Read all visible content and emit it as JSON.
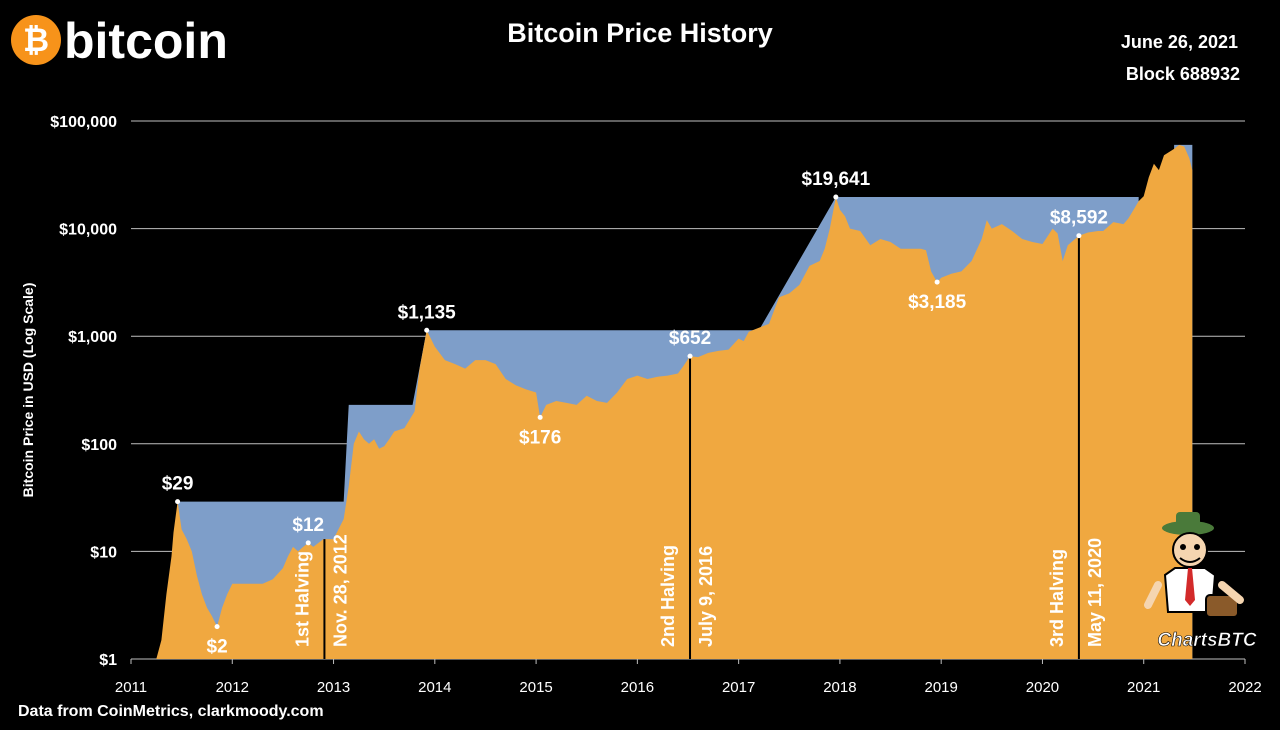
{
  "header": {
    "logo_text": "bitcoin",
    "logo_symbol": "₿",
    "title": "Bitcoin Price History",
    "date": "June 26, 2021",
    "block": "Block 688932"
  },
  "footer": {
    "source": "Data from CoinMetrics, clarkmoody.com",
    "watermark": "ChartsBTC"
  },
  "colors": {
    "background": "#000000",
    "price_fill": "#f0a840",
    "ath_fill": "#7e9ec9",
    "grid": "#bfbfbf",
    "text": "#ffffff",
    "logo": "#f7931a"
  },
  "chart_data": {
    "type": "area",
    "title": "Bitcoin Price History",
    "xlabel": "",
    "ylabel": "Bitcoin Price in USD (Log Scale)",
    "y_scale": "log",
    "ylim": [
      1,
      100000
    ],
    "xlim": [
      2011,
      2022
    ],
    "grid": "horizontal",
    "x_ticks": [
      "2011",
      "2012",
      "2013",
      "2014",
      "2015",
      "2016",
      "2017",
      "2018",
      "2019",
      "2020",
      "2021",
      "2022"
    ],
    "y_ticks": [
      {
        "value": 1,
        "label": "$1"
      },
      {
        "value": 10,
        "label": "$10"
      },
      {
        "value": 100,
        "label": "$100"
      },
      {
        "value": 1000,
        "label": "$1,000"
      },
      {
        "value": 10000,
        "label": "$10,000"
      },
      {
        "value": 100000,
        "label": "$100,000"
      }
    ],
    "series": [
      {
        "name": "",
        "x": [
          2011.0,
          2011.2,
          2011.25,
          2011.3,
          2011.35,
          2011.4,
          2011.42,
          2011.46,
          2011.5,
          2011.55,
          2011.6,
          2011.65,
          2011.7,
          2011.75,
          2011.8,
          2011.85,
          2011.9,
          2011.95,
          2012.0,
          2012.1,
          2012.2,
          2012.3,
          2012.4,
          2012.5,
          2012.55,
          2012.6,
          2012.65,
          2012.7,
          2012.75,
          2012.8,
          2012.9,
          2013.0,
          2013.1,
          2013.15,
          2013.2,
          2013.25,
          2013.3,
          2013.35,
          2013.4,
          2013.45,
          2013.5,
          2013.55,
          2013.6,
          2013.7,
          2013.8,
          2013.85,
          2013.92,
          2014.0,
          2014.1,
          2014.2,
          2014.3,
          2014.4,
          2014.5,
          2014.6,
          2014.7,
          2014.8,
          2014.9,
          2015.0,
          2015.04,
          2015.1,
          2015.2,
          2015.3,
          2015.4,
          2015.5,
          2015.6,
          2015.7,
          2015.8,
          2015.9,
          2016.0,
          2016.1,
          2016.2,
          2016.3,
          2016.4,
          2016.45,
          2016.52,
          2016.6,
          2016.7,
          2016.8,
          2016.9,
          2017.0,
          2017.05,
          2017.1,
          2017.2,
          2017.3,
          2017.4,
          2017.5,
          2017.6,
          2017.7,
          2017.8,
          2017.85,
          2017.9,
          2017.96,
          2018.0,
          2018.05,
          2018.1,
          2018.2,
          2018.3,
          2018.4,
          2018.5,
          2018.6,
          2018.7,
          2018.8,
          2018.85,
          2018.9,
          2018.96,
          2019.0,
          2019.1,
          2019.2,
          2019.3,
          2019.4,
          2019.45,
          2019.5,
          2019.6,
          2019.7,
          2019.8,
          2019.9,
          2020.0,
          2020.1,
          2020.15,
          2020.2,
          2020.25,
          2020.36,
          2020.45,
          2020.55,
          2020.6,
          2020.7,
          2020.8,
          2020.85,
          2020.9,
          2020.95,
          2021.0,
          2021.05,
          2021.1,
          2021.15,
          2021.2,
          2021.3,
          2021.35,
          2021.4,
          2021.45,
          2021.48
        ],
        "y": [
          1,
          1,
          1,
          1.5,
          4,
          9,
          15,
          29,
          16,
          13,
          10,
          6,
          4,
          3,
          2.5,
          2,
          3,
          4,
          5,
          5,
          5,
          5,
          5.5,
          7,
          9,
          11,
          10,
          11,
          12,
          11,
          13,
          13,
          20,
          40,
          100,
          130,
          110,
          100,
          110,
          90,
          95,
          110,
          130,
          140,
          200,
          500,
          1135,
          800,
          600,
          550,
          500,
          600,
          600,
          550,
          400,
          350,
          320,
          300,
          176,
          230,
          250,
          240,
          230,
          280,
          250,
          240,
          300,
          400,
          430,
          400,
          420,
          430,
          450,
          520,
          652,
          640,
          700,
          730,
          750,
          950,
          900,
          1100,
          1200,
          1300,
          2300,
          2500,
          3000,
          4500,
          5000,
          6500,
          10000,
          19641,
          15000,
          13000,
          10000,
          9500,
          7000,
          8000,
          7500,
          6500,
          6500,
          6500,
          6300,
          4000,
          3185,
          3500,
          3800,
          4000,
          5000,
          8000,
          12000,
          10000,
          11000,
          9500,
          8000,
          7500,
          7200,
          10000,
          9000,
          5000,
          7000,
          8592,
          9200,
          9500,
          9500,
          11500,
          11000,
          12500,
          15000,
          18000,
          20000,
          30000,
          40000,
          35000,
          48000,
          55000,
          60000,
          58000,
          45000,
          35000
        ]
      }
    ],
    "ath_envelope": {
      "x": [
        2011.46,
        2013.1,
        2013.15,
        2013.3,
        2013.78,
        2013.92,
        2017.2,
        2017.96,
        2020.95
      ],
      "y": [
        29,
        29,
        230,
        230,
        230,
        1135,
        1135,
        19641,
        19641
      ]
    },
    "annotations": [
      {
        "label": "$29",
        "x": 2011.46,
        "y": 29,
        "position": "above"
      },
      {
        "label": "$2",
        "x": 2011.85,
        "y": 2,
        "position": "below"
      },
      {
        "label": "$12",
        "x": 2012.75,
        "y": 12,
        "position": "above"
      },
      {
        "label": "$1,135",
        "x": 2013.92,
        "y": 1135,
        "position": "above"
      },
      {
        "label": "$176",
        "x": 2015.04,
        "y": 176,
        "position": "below"
      },
      {
        "label": "$652",
        "x": 2016.52,
        "y": 652,
        "position": "above"
      },
      {
        "label": "$19,641",
        "x": 2017.96,
        "y": 19641,
        "position": "above"
      },
      {
        "label": "$3,185",
        "x": 2018.96,
        "y": 3185,
        "position": "below"
      },
      {
        "label": "$8,592",
        "x": 2020.36,
        "y": 8592,
        "position": "above"
      }
    ],
    "halvings": [
      {
        "x": 2012.91,
        "line1": "1st Halving",
        "line2": "Nov. 28, 2012"
      },
      {
        "x": 2016.52,
        "line1": "2nd Halving",
        "line2": "July 9, 2016"
      },
      {
        "x": 2020.36,
        "line1": "3rd Halving",
        "line2": "May 11, 2020"
      }
    ]
  }
}
